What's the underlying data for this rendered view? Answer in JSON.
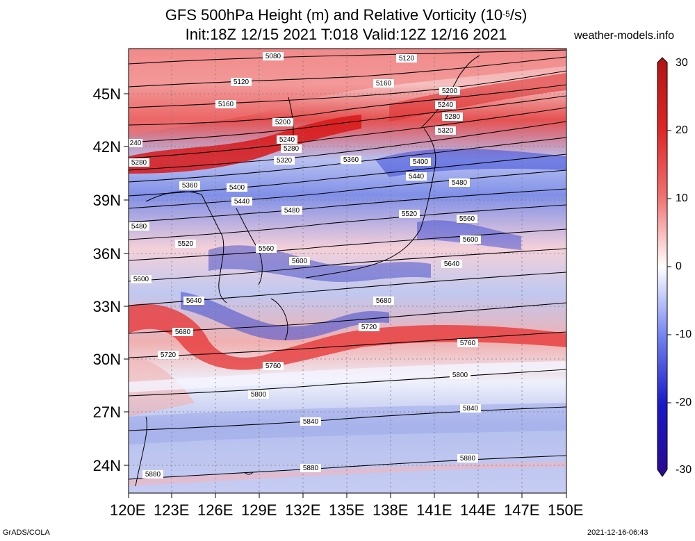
{
  "title": {
    "line1_main": "GFS 500hPa Height (m) and Relative Vorticity (10",
    "line1_exp": "-5",
    "line1_end": "/s)",
    "line2": "Init:18Z 12/15 2021 T:018 Valid:12Z 12/16 2021"
  },
  "site": "weather-models.info",
  "lat_labels": [
    "45N",
    "42N",
    "39N",
    "36N",
    "33N",
    "30N",
    "27N",
    "24N"
  ],
  "lon_labels": [
    "120E",
    "123E",
    "126E",
    "129E",
    "132E",
    "135E",
    "138E",
    "141E",
    "144E",
    "147E",
    "150E"
  ],
  "colorbar": {
    "labels": [
      "30",
      "20",
      "10",
      "0",
      "-10",
      "-20",
      "-30"
    ],
    "colors": [
      "#b01515",
      "#e02525",
      "#f07070",
      "#ffffff",
      "#7080f0",
      "#1818c8",
      "#2a0a90"
    ]
  },
  "contour_labels": {
    "c5080": "5080",
    "c5120a": "5120",
    "c5120b": "5120",
    "c5160a": "5160",
    "c5160b": "5160",
    "c5200a": "5200",
    "c5200b": "5200",
    "c5240a": "5240",
    "c5240b": "5240",
    "c5240c": "240",
    "c5280a": "5280",
    "c5280b": "5280",
    "c5280c": "5280",
    "c5320a": "5320",
    "c5320b": "5320",
    "c5360a": "5360",
    "c5360b": "5360",
    "c5400a": "5400",
    "c5400b": "5400",
    "c5440a": "5440",
    "c5440b": "5440",
    "c5480a": "5480",
    "c5480b": "5480",
    "c5480c": "5480",
    "c5520a": "5520",
    "c5520b": "5520",
    "c5560a": "5560",
    "c5560b": "5560",
    "c5600a": "5600",
    "c5600b": "5600",
    "c5600c": "5600",
    "c5640a": "5640",
    "c5640b": "5640",
    "c5680a": "5680",
    "c5680b": "5680",
    "c5720a": "5720",
    "c5720b": "5720",
    "c5760a": "5760",
    "c5760b": "5760",
    "c5800a": "5800",
    "c5800b": "5800",
    "c5840a": "5840",
    "c5840b": "5840",
    "c5880a": "5880",
    "c5880b": "5880",
    "c5880c": "5880"
  },
  "footer": {
    "left": "GrADS/COLA",
    "right": "2021-12-16-06:43"
  }
}
